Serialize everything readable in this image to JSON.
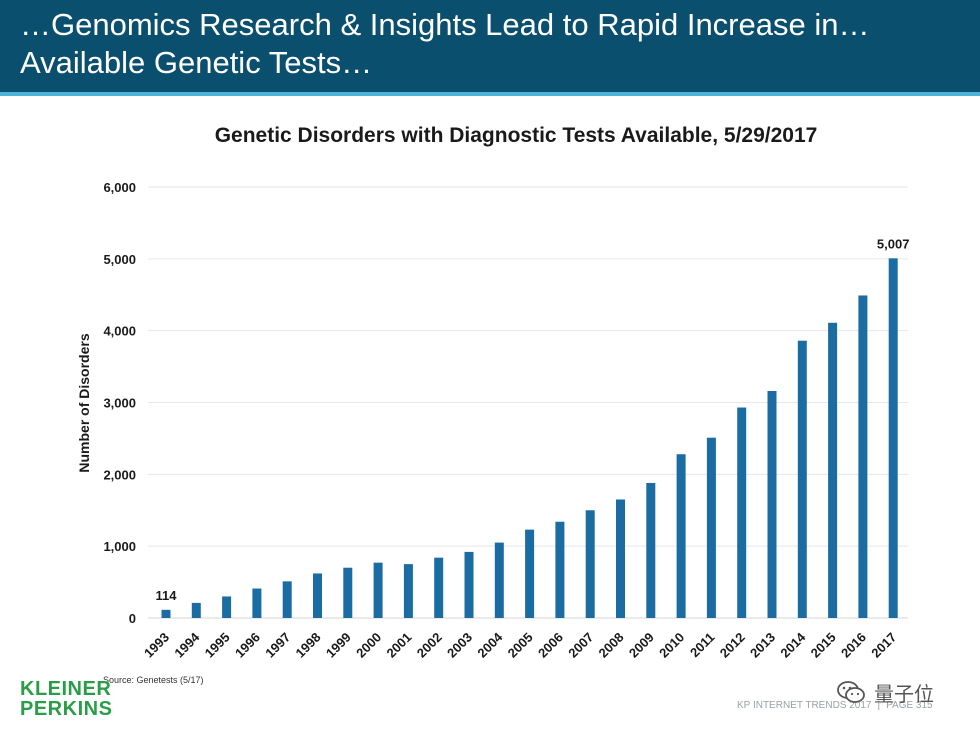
{
  "header": {
    "title_line1": "…Genomics Research & Insights Lead to Rapid Increase in…",
    "title_line2": "Available Genetic Tests…"
  },
  "chart_data": {
    "type": "bar",
    "title": "Genetic Disorders with Diagnostic Tests Available, 5/29/2017",
    "xlabel": "",
    "ylabel": "Number of Disorders",
    "categories": [
      "1993",
      "1994",
      "1995",
      "1996",
      "1997",
      "1998",
      "1999",
      "2000",
      "2001",
      "2002",
      "2003",
      "2004",
      "2005",
      "2006",
      "2007",
      "2008",
      "2009",
      "2010",
      "2011",
      "2012",
      "2013",
      "2014",
      "2015",
      "2016",
      "2017"
    ],
    "values": [
      114,
      210,
      300,
      410,
      510,
      620,
      700,
      770,
      750,
      840,
      920,
      1050,
      1230,
      1340,
      1500,
      1650,
      1880,
      2280,
      2510,
      2930,
      3160,
      3860,
      4110,
      4490,
      5007
    ],
    "ylim": [
      0,
      6000
    ],
    "yticks": [
      0,
      1000,
      2000,
      3000,
      4000,
      5000,
      6000
    ],
    "ytick_labels": [
      "0",
      "1,000",
      "2,000",
      "3,000",
      "4,000",
      "5,000",
      "6,000"
    ],
    "data_labels": [
      {
        "index": 0,
        "text": "114"
      },
      {
        "index": 24,
        "text": "5,007"
      }
    ],
    "bar_color": "#1b6ca3",
    "grid": true,
    "legend": "none"
  },
  "source": "Source: Genetests (5/17)",
  "logo": {
    "line1": "KLEINER",
    "line2": "PERKINS",
    "color": "#2a9d48"
  },
  "footer": {
    "left": "KP INTERNET TRENDS 2017",
    "sep": "|",
    "right": "PAGE 315"
  },
  "watermark": {
    "text": "量子位",
    "icon": "wechat-icon"
  }
}
